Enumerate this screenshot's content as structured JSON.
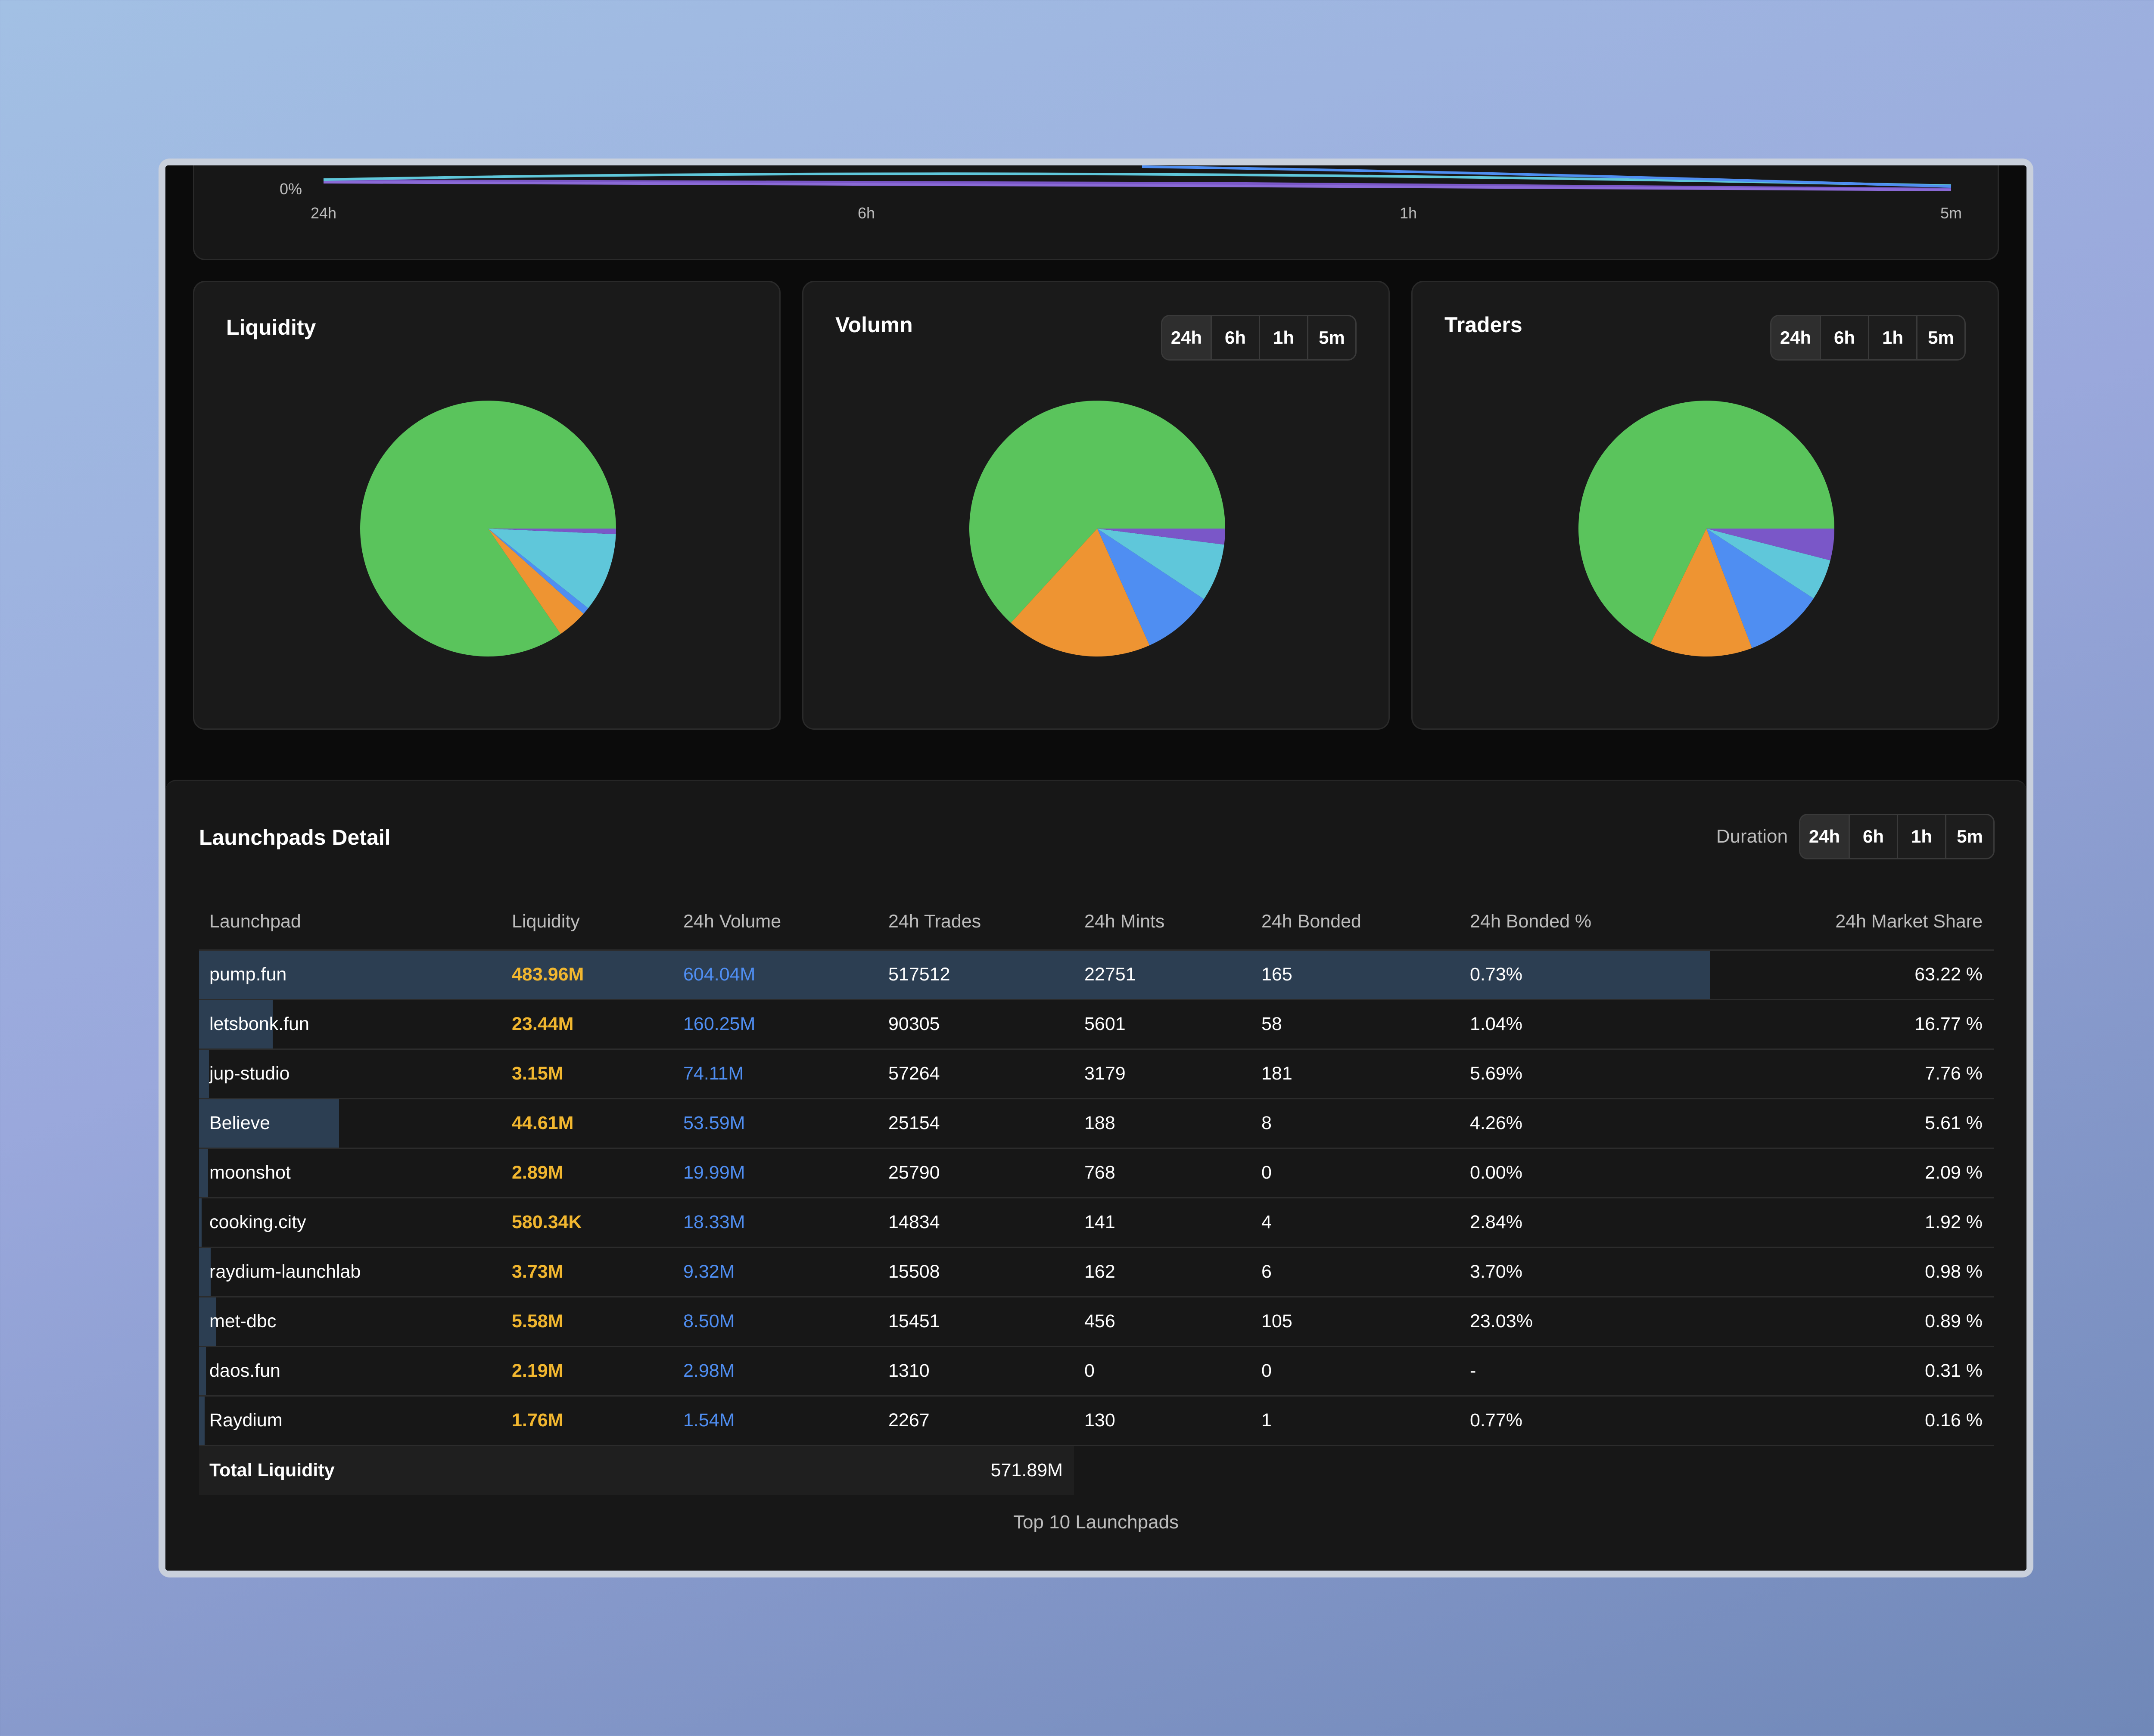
{
  "trend": {
    "y_label": "0%",
    "x_labels": [
      "24h",
      "6h",
      "1h",
      "5m"
    ]
  },
  "colors": {
    "slices": [
      "#5ac45c",
      "#ee9432",
      "#4f8ef2",
      "#5fc7da",
      "#7a57c8"
    ],
    "liquidity": "#f2b72f",
    "volume": "#4f8ef2",
    "row_bar": "#2c3e52"
  },
  "cards": [
    {
      "title": "Liquidity",
      "has_toggle": false,
      "chart_data": {
        "type": "pie",
        "slices": [
          {
            "value": 84.6,
            "color": "#5ac45c"
          },
          {
            "value": 3.8,
            "color": "#ee9432"
          },
          {
            "value": 0.9,
            "color": "#4f8ef2"
          },
          {
            "value": 10.0,
            "color": "#5fc7da"
          },
          {
            "value": 0.7,
            "color": "#7a57c8"
          }
        ]
      }
    },
    {
      "title": "Volumn",
      "has_toggle": true,
      "toggle": [
        "24h",
        "6h",
        "1h",
        "5m"
      ],
      "active": 0,
      "chart_data": {
        "type": "pie",
        "slices": [
          {
            "value": 63.2,
            "color": "#5ac45c"
          },
          {
            "value": 18.5,
            "color": "#ee9432"
          },
          {
            "value": 9.0,
            "color": "#4f8ef2"
          },
          {
            "value": 7.3,
            "color": "#5fc7da"
          },
          {
            "value": 2.0,
            "color": "#7a57c8"
          }
        ]
      }
    },
    {
      "title": "Traders",
      "has_toggle": true,
      "toggle": [
        "24h",
        "6h",
        "1h",
        "5m"
      ],
      "active": 0,
      "chart_data": {
        "type": "pie",
        "slices": [
          {
            "value": 67.8,
            "color": "#5ac45c"
          },
          {
            "value": 13.0,
            "color": "#ee9432"
          },
          {
            "value": 10.0,
            "color": "#4f8ef2"
          },
          {
            "value": 5.2,
            "color": "#5fc7da"
          },
          {
            "value": 4.0,
            "color": "#7a57c8"
          }
        ]
      }
    }
  ],
  "detail": {
    "title": "Launchpads Detail",
    "duration_label": "Duration",
    "duration_options": [
      "24h",
      "6h",
      "1h",
      "5m"
    ],
    "duration_active": 0,
    "headers": [
      "Launchpad",
      "Liquidity",
      "24h Volume",
      "24h Trades",
      "24h Mints",
      "24h Bonded",
      "24h Bonded %",
      "24h Market Share"
    ],
    "rows": [
      {
        "name": "pump.fun",
        "liquidity": "483.96M",
        "volume": "604.04M",
        "trades": "517512",
        "mints": "22751",
        "bonded": "165",
        "bonded_pct": "0.73%",
        "share": "63.22 %",
        "bar": 0.842
      },
      {
        "name": "letsbonk.fun",
        "liquidity": "23.44M",
        "volume": "160.25M",
        "trades": "90305",
        "mints": "5601",
        "bonded": "58",
        "bonded_pct": "1.04%",
        "share": "16.77 %",
        "bar": 0.041
      },
      {
        "name": "jup-studio",
        "liquidity": "3.15M",
        "volume": "74.11M",
        "trades": "57264",
        "mints": "3179",
        "bonded": "181",
        "bonded_pct": "5.69%",
        "share": "7.76 %",
        "bar": 0.0055
      },
      {
        "name": "Believe",
        "liquidity": "44.61M",
        "volume": "53.59M",
        "trades": "25154",
        "mints": "188",
        "bonded": "8",
        "bonded_pct": "4.26%",
        "share": "5.61 %",
        "bar": 0.078
      },
      {
        "name": "moonshot",
        "liquidity": "2.89M",
        "volume": "19.99M",
        "trades": "25790",
        "mints": "768",
        "bonded": "0",
        "bonded_pct": "0.00%",
        "share": "2.09 %",
        "bar": 0.005
      },
      {
        "name": "cooking.city",
        "liquidity": "580.34K",
        "volume": "18.33M",
        "trades": "14834",
        "mints": "141",
        "bonded": "4",
        "bonded_pct": "2.84%",
        "share": "1.92 %",
        "bar": 0.001
      },
      {
        "name": "raydium-launchlab",
        "liquidity": "3.73M",
        "volume": "9.32M",
        "trades": "15508",
        "mints": "162",
        "bonded": "6",
        "bonded_pct": "3.70%",
        "share": "0.98 %",
        "bar": 0.0065
      },
      {
        "name": "met-dbc",
        "liquidity": "5.58M",
        "volume": "8.50M",
        "trades": "15451",
        "mints": "456",
        "bonded": "105",
        "bonded_pct": "23.03%",
        "share": "0.89 %",
        "bar": 0.0097
      },
      {
        "name": "daos.fun",
        "liquidity": "2.19M",
        "volume": "2.98M",
        "trades": "1310",
        "mints": "0",
        "bonded": "0",
        "bonded_pct": "-",
        "share": "0.31 %",
        "bar": 0.0038
      },
      {
        "name": "Raydium",
        "liquidity": "1.76M",
        "volume": "1.54M",
        "trades": "2267",
        "mints": "130",
        "bonded": "1",
        "bonded_pct": "0.77%",
        "share": "0.16 %",
        "bar": 0.0031
      }
    ],
    "total_label": "Total Liquidity",
    "total_value": "571.89M",
    "caption": "Top 10 Launchpads"
  }
}
